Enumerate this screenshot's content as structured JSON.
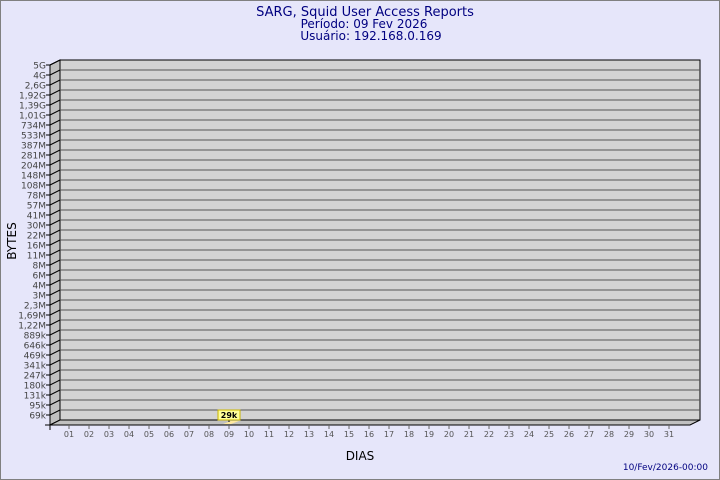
{
  "chart_data": {
    "type": "bar",
    "title": "SARG, Squid User Access Reports",
    "subtitle_period": "Período: 09 Fev 2026",
    "subtitle_user": "Usuário: 192.168.0.169",
    "xlabel": "DIAS",
    "ylabel": "BYTES",
    "footer": "10/Fev/2026-00:00",
    "y_scale": "log",
    "grid": true,
    "y_tick_labels": [
      "5G",
      "4G",
      "2,6G",
      "1,92G",
      "1,39G",
      "1,01G",
      "734M",
      "533M",
      "387M",
      "281M",
      "204M",
      "148M",
      "108M",
      "78M",
      "57M",
      "41M",
      "30M",
      "22M",
      "16M",
      "11M",
      "8M",
      "6M",
      "4M",
      "3M",
      "2,3M",
      "1,69M",
      "1,22M",
      "889k",
      "646k",
      "469k",
      "341k",
      "247k",
      "180k",
      "131k",
      "95k",
      "69k"
    ],
    "categories": [
      "01",
      "02",
      "03",
      "04",
      "05",
      "06",
      "07",
      "08",
      "09",
      "10",
      "11",
      "12",
      "13",
      "14",
      "15",
      "16",
      "17",
      "18",
      "19",
      "20",
      "21",
      "22",
      "23",
      "24",
      "25",
      "26",
      "27",
      "28",
      "29",
      "30",
      "31"
    ],
    "series": [
      {
        "values": [
          {
            "x": "09",
            "y": 29000,
            "label": "29k"
          }
        ]
      }
    ],
    "colors": {
      "background": "#e6e6fa",
      "wall": "#d3d3d3",
      "side_wall": "#c0c0c0",
      "title": "#000080",
      "bar": "#ffe9a0",
      "data_label_bg": "#ffff99"
    }
  }
}
